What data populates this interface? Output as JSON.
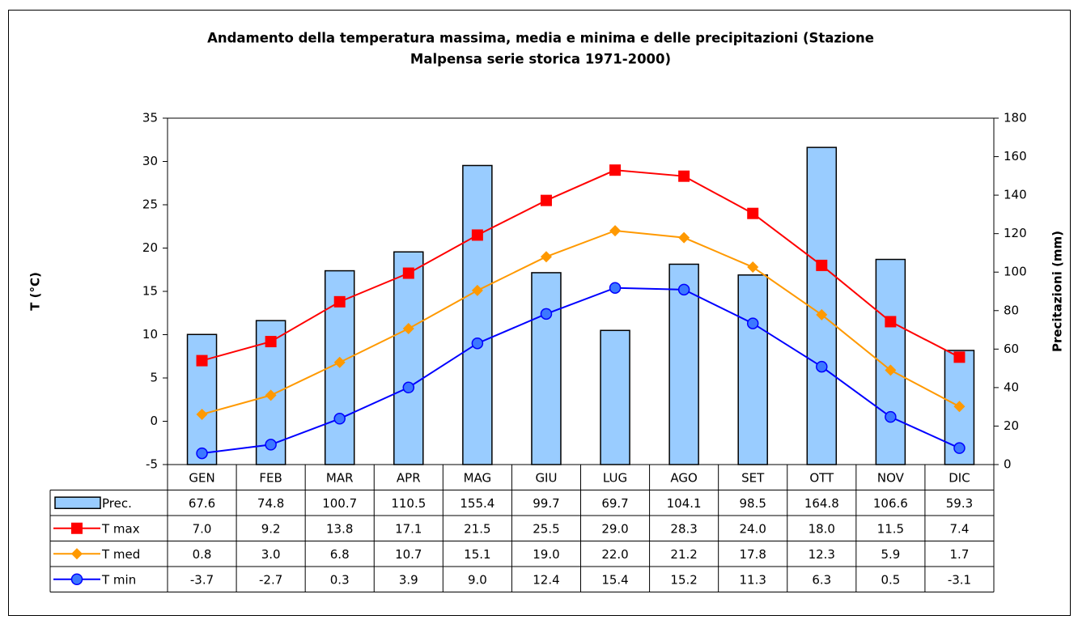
{
  "chart_data": {
    "type": "combo",
    "title": [
      "Andamento della temperatura massima, media e minima e delle precipitazioni (Stazione",
      "Malpensa serie storica 1971-2000)"
    ],
    "y_label": "T (°C)",
    "y2_label": "Precitazioni (mm)",
    "categories": [
      "GEN",
      "FEB",
      "MAR",
      "APR",
      "MAG",
      "GIU",
      "LUG",
      "AGO",
      "SET",
      "OTT",
      "NOV",
      "DIC"
    ],
    "ylim": [
      -5,
      35
    ],
    "yticks": [
      -5,
      0,
      5,
      10,
      15,
      20,
      25,
      30,
      35
    ],
    "y2lim": [
      0,
      180
    ],
    "y2ticks": [
      0,
      20,
      40,
      60,
      80,
      100,
      120,
      140,
      160,
      180
    ],
    "grid": false,
    "series": [
      {
        "name": "Prec.",
        "type": "bar",
        "axis": "y2",
        "color": "#99ccff",
        "values": [
          67.6,
          74.8,
          100.7,
          110.5,
          155.4,
          99.7,
          69.7,
          104.1,
          98.5,
          164.8,
          106.6,
          59.3
        ]
      },
      {
        "name": "T max",
        "type": "line",
        "marker": "square",
        "color": "#ff0000",
        "values": [
          7.0,
          9.2,
          13.8,
          17.1,
          21.5,
          25.5,
          29.0,
          28.3,
          24.0,
          18.0,
          11.5,
          7.4
        ],
        "value_labels": [
          "7.0",
          "9.2",
          "13.8",
          "17.1",
          "21.5",
          "25.5",
          "29.0",
          "28.3",
          "24.0",
          "18.0",
          "11.5",
          "7.4"
        ]
      },
      {
        "name": "T med",
        "type": "line",
        "marker": "diamond",
        "color": "#ff9900",
        "values": [
          0.8,
          3.0,
          6.8,
          10.7,
          15.1,
          19.0,
          22.0,
          21.2,
          17.8,
          12.3,
          5.9,
          1.7
        ],
        "value_labels": [
          "0.8",
          "3.0",
          "6.8",
          "10.7",
          "15.1",
          "19.0",
          "22.0",
          "21.2",
          "17.8",
          "12.3",
          "5.9",
          "1.7"
        ]
      },
      {
        "name": "T min",
        "type": "line",
        "marker": "circle",
        "color": "#0000ff",
        "values": [
          -3.7,
          -2.7,
          0.3,
          3.9,
          9.0,
          12.4,
          15.4,
          15.2,
          11.3,
          6.3,
          0.5,
          -3.1
        ],
        "value_labels": [
          "-3.7",
          "-2.7",
          "0.3",
          "3.9",
          "9.0",
          "12.4",
          "15.4",
          "15.2",
          "11.3",
          "6.3",
          "0.5",
          "-3.1"
        ]
      }
    ]
  }
}
